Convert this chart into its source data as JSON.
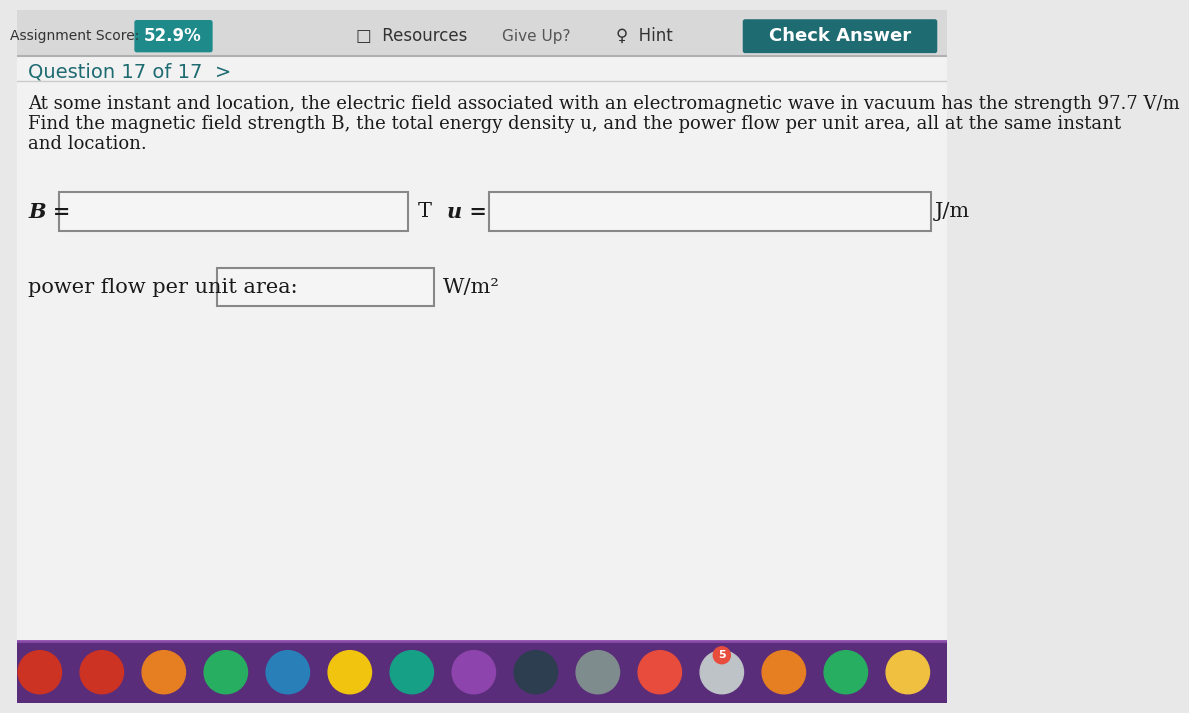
{
  "bg_color": "#e8e8e8",
  "top_bar_bg": "#d8d8d8",
  "content_bg": "#f0f0f0",
  "teal_btn_color": "#1e6b72",
  "score_bg": "#1e8a8a",
  "score_text": "52.9%",
  "assignment_label": "Assignment Score:",
  "resources_text": "Resources",
  "give_up_text": "Give Up?",
  "hint_text": "Hint",
  "check_answer_text": "Check Answer",
  "question_nav": "Question 17 of 17  >",
  "problem_text_line1": "At some instant and location, the electric field associated with an electromagnetic wave in vacuum has the strength 97.7 V/m",
  "problem_text_line2": "Find the magnetic field strength B, the total energy density u, and the power flow per unit area, all at the same instant",
  "problem_text_line3": "and location.",
  "B_label": "B =",
  "T_label": "T",
  "u_label": "u =",
  "Jm3_label": "J/m",
  "power_label": "power flow per unit area:",
  "Wm2_label": "W/m²",
  "input_box_color": "#f5f5f5",
  "input_border_color": "#888888",
  "dock_bg": "#5a2d7a",
  "text_color": "#1a1a1a"
}
